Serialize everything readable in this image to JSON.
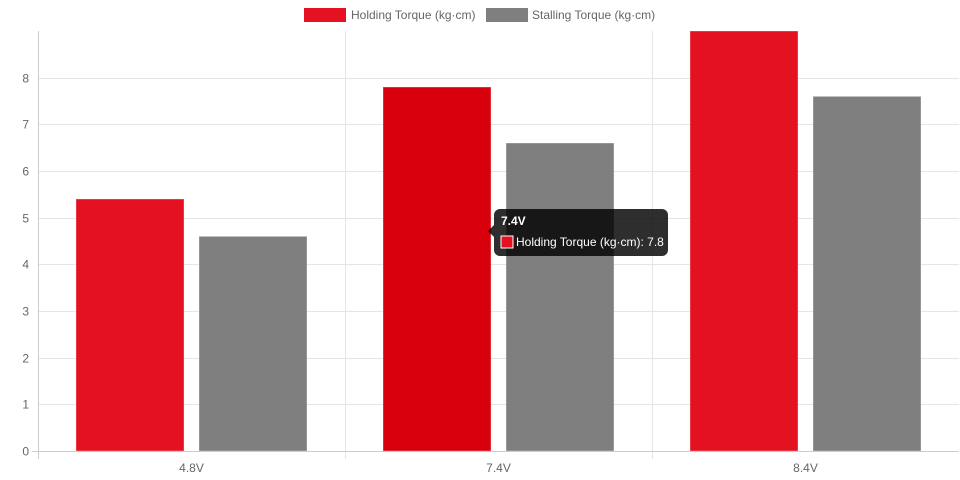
{
  "chart_data": {
    "type": "bar",
    "categories": [
      "4.8V",
      "7.4V",
      "8.4V"
    ],
    "series": [
      {
        "name": "Holding Torque (kg·cm)",
        "values": [
          5.4,
          7.8,
          9.0
        ],
        "color": "#e41120",
        "hover_color": "#d9000d"
      },
      {
        "name": "Stalling Torque (kg·cm)",
        "values": [
          4.6,
          6.6,
          7.6
        ],
        "color": "#7f7f7f"
      }
    ],
    "ylim": [
      0,
      9
    ],
    "yticks": [
      0,
      1,
      2,
      3,
      4,
      5,
      6,
      7,
      8
    ],
    "grid": true,
    "legend_position": "top",
    "tooltip": {
      "title": "7.4V",
      "series_index": 0,
      "category_index": 1,
      "line": "Holding Torque (kg·cm): 7.8"
    }
  }
}
